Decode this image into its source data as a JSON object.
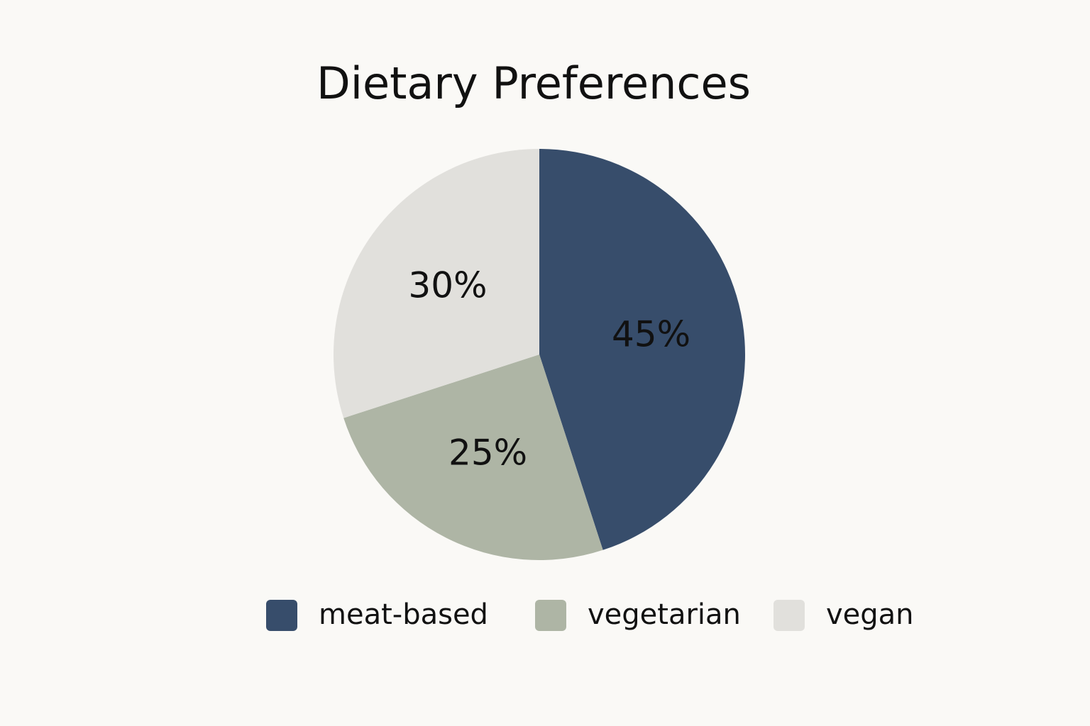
{
  "chart_data": {
    "type": "pie",
    "title": "Dietary Preferences",
    "categories": [
      "meat-based",
      "vegetarian",
      "vegan"
    ],
    "values": [
      45,
      25,
      30
    ],
    "value_labels": [
      "45%",
      "25%",
      "30%"
    ],
    "colors": [
      "#374d6b",
      "#aeb5a5",
      "#e1e0dc"
    ],
    "legend": "bottom"
  }
}
